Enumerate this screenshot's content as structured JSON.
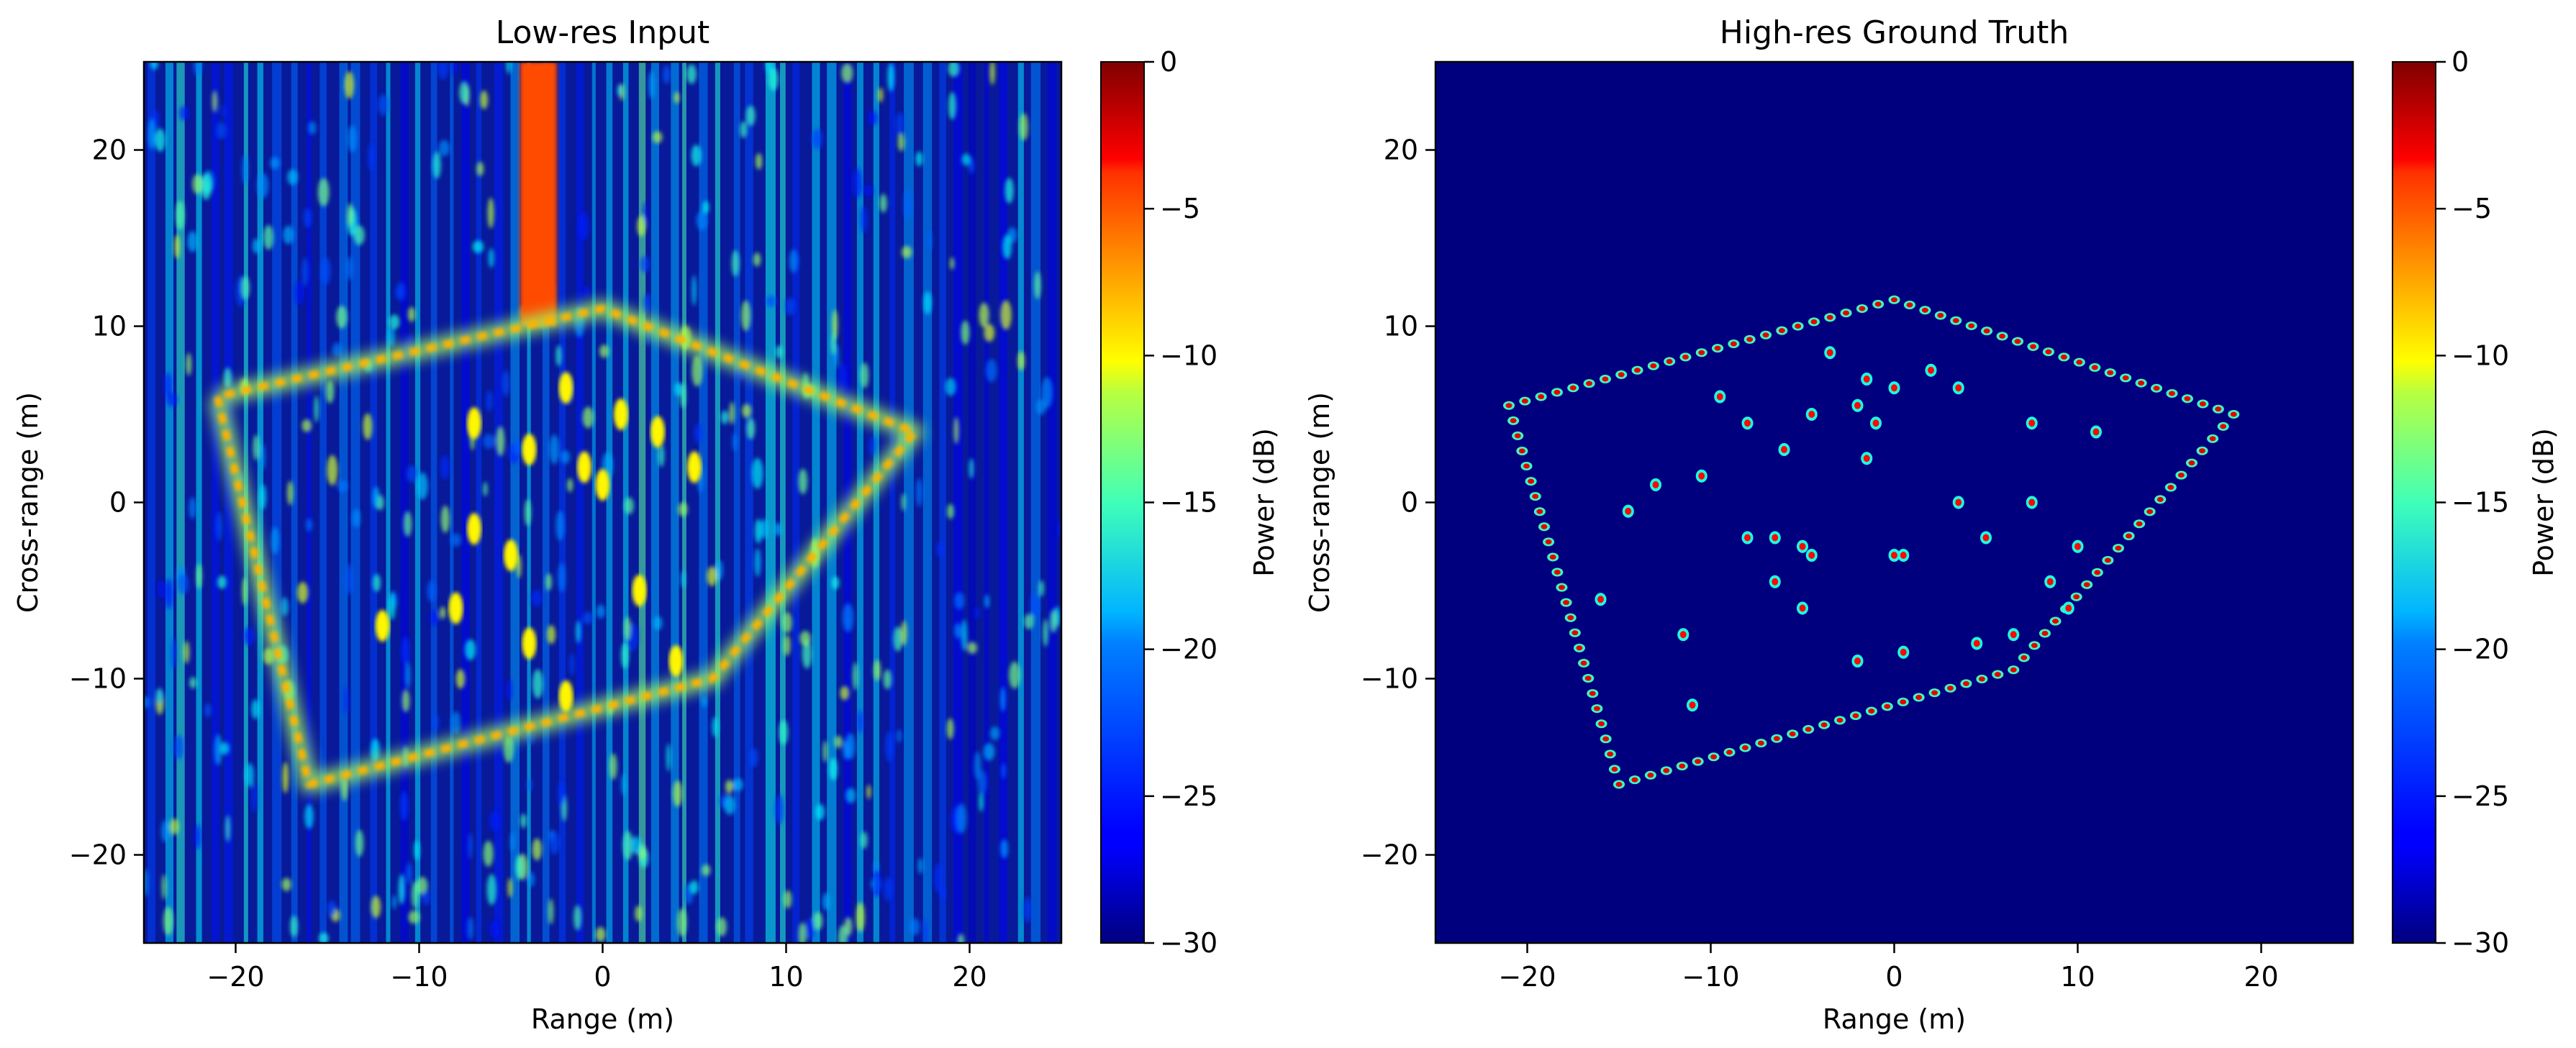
{
  "chart_data": [
    {
      "type": "heatmap",
      "title": "Low-res Input",
      "xlabel": "Range (m)",
      "ylabel": "Cross-range (m)",
      "xlim": [
        -25,
        25
      ],
      "ylim": [
        -25,
        25
      ],
      "xticks": [
        -20,
        -10,
        0,
        10,
        20
      ],
      "yticks": [
        -20,
        -10,
        0,
        10,
        20
      ],
      "xtick_labels": [
        "−20",
        "−10",
        "0",
        "10",
        "20"
      ],
      "ytick_labels": [
        "−20",
        "−10",
        "0",
        "10",
        "20"
      ],
      "colormap": "jet",
      "background": "noisy",
      "colorbar": {
        "label": "Power (dB)",
        "range": [
          -30,
          0
        ],
        "ticks": [
          0,
          -5,
          -10,
          -15,
          -20,
          -25,
          -30
        ],
        "tick_labels": [
          "0",
          "−5",
          "−10",
          "−15",
          "−20",
          "−25",
          "−30"
        ]
      },
      "outline_polygon": [
        [
          -21,
          6
        ],
        [
          -16,
          -16
        ],
        [
          6,
          -10
        ],
        [
          17,
          4
        ],
        [
          0,
          11
        ],
        [
          -21,
          6
        ]
      ],
      "hot_streak": {
        "x_range": [
          -4.5,
          -2.5
        ],
        "y_range": [
          10,
          25
        ],
        "power_db": -6
      },
      "interior_scatterers": [
        [
          -7,
          4.5
        ],
        [
          -4,
          3
        ],
        [
          -2,
          6.5
        ],
        [
          1,
          5
        ],
        [
          -1,
          2
        ],
        [
          3,
          4
        ],
        [
          -7,
          -1.5
        ],
        [
          -12,
          -7
        ],
        [
          -4,
          -8
        ],
        [
          -2,
          -11
        ],
        [
          -8,
          -6
        ],
        [
          0,
          1
        ],
        [
          5,
          2
        ],
        [
          2,
          -5
        ],
        [
          -5,
          -3
        ],
        [
          4,
          -9
        ]
      ]
    },
    {
      "type": "heatmap",
      "title": "High-res Ground Truth",
      "xlabel": "Range (m)",
      "ylabel": "Cross-range (m)",
      "xlim": [
        -25,
        25
      ],
      "ylim": [
        -25,
        25
      ],
      "xticks": [
        -20,
        -10,
        0,
        10,
        20
      ],
      "yticks": [
        -20,
        -10,
        0,
        10,
        20
      ],
      "xtick_labels": [
        "−20",
        "−10",
        "0",
        "10",
        "20"
      ],
      "ytick_labels": [
        "−20",
        "−10",
        "0",
        "10",
        "20"
      ],
      "colormap": "jet",
      "background": "clean",
      "colorbar": {
        "label": "Power (dB)",
        "range": [
          -30,
          0
        ],
        "ticks": [
          0,
          -5,
          -10,
          -15,
          -20,
          -25,
          -30
        ],
        "tick_labels": [
          "0",
          "−5",
          "−10",
          "−15",
          "−20",
          "−25",
          "−30"
        ]
      },
      "outline_polygon": [
        [
          -21,
          5.5
        ],
        [
          0,
          11.5
        ],
        [
          18.5,
          5
        ],
        [
          6.5,
          -9.5
        ],
        [
          -15,
          -16
        ],
        [
          -21,
          5.5
        ]
      ],
      "interior_scatterers": [
        [
          -3.5,
          8.5
        ],
        [
          -1.5,
          7
        ],
        [
          0,
          6.5
        ],
        [
          2,
          7.5
        ],
        [
          3.5,
          6.5
        ],
        [
          -9.5,
          6
        ],
        [
          -4.5,
          5
        ],
        [
          -2,
          5.5
        ],
        [
          -1,
          4.5
        ],
        [
          -8,
          4.5
        ],
        [
          7.5,
          4.5
        ],
        [
          11,
          4
        ],
        [
          -1.5,
          2.5
        ],
        [
          -6,
          3
        ],
        [
          -10.5,
          1.5
        ],
        [
          -13,
          1
        ],
        [
          3.5,
          0
        ],
        [
          7.5,
          0
        ],
        [
          -14.5,
          -0.5
        ],
        [
          -8,
          -2
        ],
        [
          -6.5,
          -2
        ],
        [
          -5,
          -2.5
        ],
        [
          -4.5,
          -3
        ],
        [
          -6.5,
          -4.5
        ],
        [
          0.5,
          -3
        ],
        [
          5,
          -2
        ],
        [
          10,
          -2.5
        ],
        [
          8.5,
          -4.5
        ],
        [
          -5,
          -6
        ],
        [
          -11.5,
          -7.5
        ],
        [
          6.5,
          -7.5
        ],
        [
          4.5,
          -8
        ],
        [
          0.5,
          -8.5
        ],
        [
          -2,
          -9
        ],
        [
          -16,
          -5.5
        ],
        [
          -11,
          -11.5
        ],
        [
          0,
          -3
        ],
        [
          9.5,
          -6
        ]
      ]
    }
  ]
}
